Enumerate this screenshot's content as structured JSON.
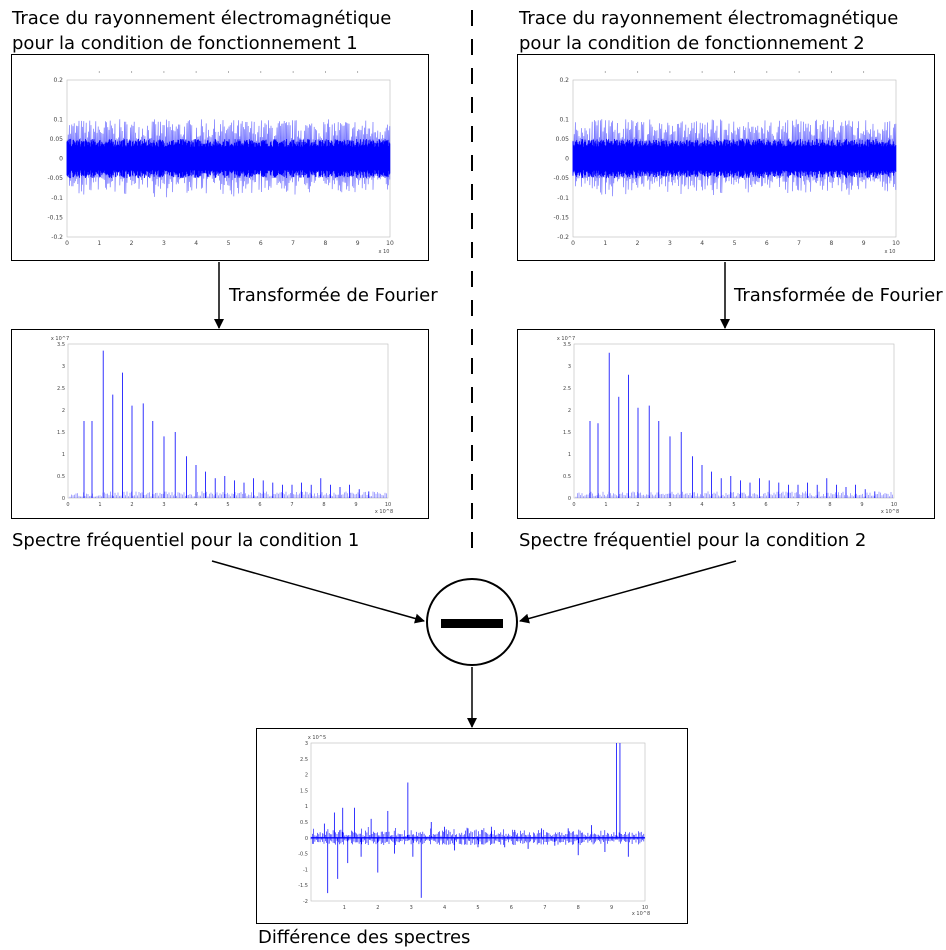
{
  "left": {
    "title_line1": "Trace du rayonnement électromagnétique",
    "title_line2": "pour la condition de fonctionnement 1",
    "fourier_label": "Transformée de Fourier",
    "spectrum_caption": "Spectre fréquentiel pour la condition 1"
  },
  "right": {
    "title_line1": "Trace du rayonnement électromagnétique",
    "title_line2": "pour la condition de fonctionnement 2",
    "fourier_label": "Transformée de Fourier",
    "spectrum_caption": "Spectre fréquentiel pour la condition 2"
  },
  "difference_caption": "Différence des spectres",
  "operator_symbol": "minus",
  "colors": {
    "signal": "#0000ff",
    "line": "#000000"
  },
  "chart_data": [
    {
      "type": "line",
      "panel": "time-trace-1",
      "ylim": [
        -0.2,
        0.2
      ],
      "xlim": [
        0,
        10
      ],
      "y_ticks": [
        "0.2",
        "0.1",
        "0.05",
        "0",
        "-0.05",
        "-0.1",
        "-0.15",
        "-0.2"
      ],
      "x_ticks": [
        "0",
        "1",
        "2",
        "3",
        "4",
        "5",
        "6",
        "7",
        "8",
        "9",
        "10"
      ],
      "x_exponent": "x 10",
      "envelope": {
        "core": 0.05,
        "peak": 0.1
      }
    },
    {
      "type": "line",
      "panel": "time-trace-2",
      "ylim": [
        -0.2,
        0.2
      ],
      "xlim": [
        0,
        10
      ],
      "y_ticks": [
        "0.2",
        "0.1",
        "0.05",
        "0",
        "-0.05",
        "-0.1",
        "-0.15",
        "-0.2"
      ],
      "x_ticks": [
        "0",
        "1",
        "2",
        "3",
        "4",
        "5",
        "6",
        "7",
        "8",
        "9",
        "10"
      ],
      "x_exponent": "x 10",
      "envelope": {
        "core": 0.05,
        "peak": 0.1
      }
    },
    {
      "type": "bar",
      "panel": "spectrum-1",
      "ylim": [
        0,
        3.5
      ],
      "xlim": [
        0,
        10
      ],
      "y_ticks": [
        "3.5",
        "3",
        "2.5",
        "2",
        "1.5",
        "1",
        "0.5",
        "0"
      ],
      "y_exponent": "x 10^7",
      "x_ticks": [
        "0",
        "1",
        "2",
        "3",
        "4",
        "5",
        "6",
        "7",
        "8",
        "9",
        "10"
      ],
      "x_exponent": "x 10^8",
      "peaks_x": [
        0.5,
        0.75,
        1.1,
        1.4,
        1.7,
        2.0,
        2.35,
        2.65,
        3.0,
        3.35,
        3.7,
        4.0,
        4.3,
        4.6,
        4.9,
        5.2,
        5.5,
        5.8,
        6.1,
        6.4,
        6.7,
        7.0,
        7.3,
        7.6,
        7.9,
        8.2,
        8.5,
        8.8,
        9.1,
        9.4
      ],
      "peaks_y": [
        1.75,
        1.75,
        3.35,
        2.35,
        2.85,
        2.1,
        2.15,
        1.75,
        1.4,
        1.5,
        0.95,
        0.75,
        0.6,
        0.45,
        0.5,
        0.4,
        0.35,
        0.45,
        0.4,
        0.35,
        0.3,
        0.3,
        0.35,
        0.3,
        0.45,
        0.3,
        0.25,
        0.3,
        0.2,
        0.15
      ]
    },
    {
      "type": "bar",
      "panel": "spectrum-2",
      "ylim": [
        0,
        3.5
      ],
      "xlim": [
        0,
        10
      ],
      "y_ticks": [
        "3.5",
        "3",
        "2.5",
        "2",
        "1.5",
        "1",
        "0.5",
        "0"
      ],
      "y_exponent": "x 10^7",
      "x_ticks": [
        "0",
        "1",
        "2",
        "3",
        "4",
        "5",
        "6",
        "7",
        "8",
        "9",
        "10"
      ],
      "x_exponent": "x 10^8",
      "peaks_x": [
        0.5,
        0.75,
        1.1,
        1.4,
        1.7,
        2.0,
        2.35,
        2.65,
        3.0,
        3.35,
        3.7,
        4.0,
        4.3,
        4.6,
        4.9,
        5.2,
        5.5,
        5.8,
        6.1,
        6.4,
        6.7,
        7.0,
        7.3,
        7.6,
        7.9,
        8.2,
        8.5,
        8.8,
        9.1,
        9.4
      ],
      "peaks_y": [
        1.75,
        1.7,
        3.3,
        2.3,
        2.8,
        2.05,
        2.1,
        1.75,
        1.4,
        1.5,
        0.95,
        0.75,
        0.6,
        0.45,
        0.5,
        0.4,
        0.35,
        0.45,
        0.4,
        0.35,
        0.3,
        0.3,
        0.35,
        0.3,
        0.45,
        0.3,
        0.25,
        0.3,
        0.2,
        0.15
      ]
    },
    {
      "type": "bar",
      "panel": "difference",
      "ylim": [
        -2,
        3
      ],
      "xlim": [
        0,
        10
      ],
      "y_ticks": [
        "3",
        "2.5",
        "2",
        "1.5",
        "1",
        "0.5",
        "0",
        "-0.5",
        "-1",
        "-1.5",
        "-2"
      ],
      "y_exponent": "x 10^5",
      "x_ticks": [
        "1",
        "2",
        "3",
        "4",
        "5",
        "6",
        "7",
        "8",
        "9",
        "10"
      ],
      "x_exponent": "x 10^8",
      "peaks_x": [
        0.4,
        0.5,
        0.7,
        0.8,
        0.95,
        1.1,
        1.3,
        1.5,
        1.8,
        2.0,
        2.3,
        2.5,
        2.9,
        3.05,
        3.3,
        3.6,
        4.0,
        4.3,
        4.7,
        5.0,
        5.4,
        5.8,
        6.1,
        6.5,
        6.9,
        7.3,
        7.7,
        8.0,
        8.4,
        8.8,
        9.15,
        9.25,
        9.5
      ],
      "peaks_y": [
        0.45,
        -1.75,
        0.8,
        -1.3,
        0.95,
        -0.8,
        0.95,
        -0.6,
        0.6,
        -1.1,
        0.85,
        -0.5,
        1.75,
        -0.6,
        -1.9,
        0.5,
        0.35,
        -0.4,
        0.3,
        -0.3,
        0.35,
        -0.3,
        0.25,
        -0.35,
        0.3,
        -0.25,
        0.3,
        -0.55,
        0.4,
        -0.45,
        3.0,
        3.0,
        -0.6
      ]
    }
  ]
}
